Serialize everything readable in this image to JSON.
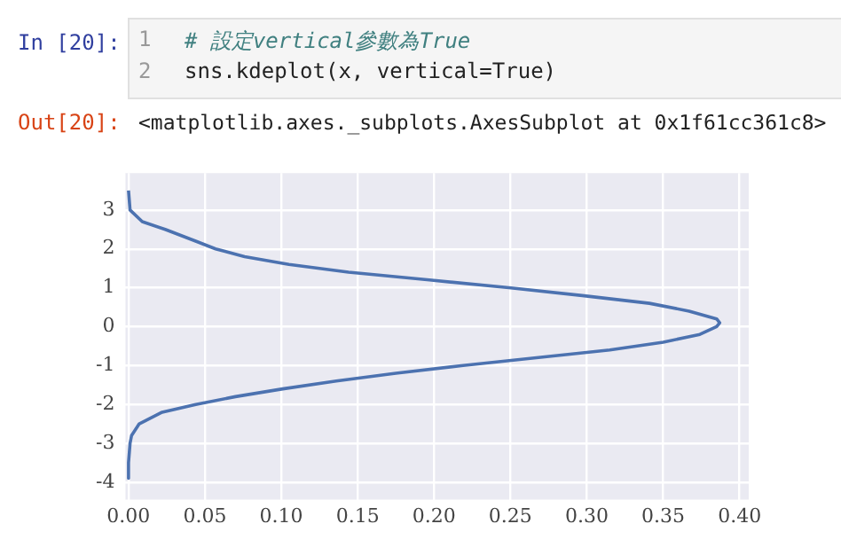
{
  "chart_data": {
    "type": "line",
    "annotations": [
      "In [20]:",
      "1",
      "# 設定vertical參數為True",
      "2",
      "sns.kdeplot(x, vertical=True)",
      "Out[20]:",
      "<matplotlib.axes._subplots.AxesSubplot at 0x1f61cc361c8>"
    ],
    "series": [
      {
        "color": "#4c72b0",
        "x": [
          0.0,
          0.001,
          0.009,
          0.024,
          0.044,
          0.057,
          0.076,
          0.105,
          0.144,
          0.197,
          0.249,
          0.297,
          0.341,
          0.367,
          0.385,
          0.387,
          0.385,
          0.374,
          0.35,
          0.315,
          0.267,
          0.219,
          0.175,
          0.136,
          0.101,
          0.07,
          0.044,
          0.022,
          0.007,
          0.002,
          0.001,
          0.0,
          0.0
        ],
        "values": [
          3.5,
          3.0,
          2.7,
          2.5,
          2.2,
          2.0,
          1.8,
          1.6,
          1.4,
          1.2,
          1.0,
          0.8,
          0.6,
          0.4,
          0.2,
          0.1,
          0.0,
          -0.2,
          -0.4,
          -0.6,
          -0.8,
          -1.0,
          -1.2,
          -1.4,
          -1.6,
          -1.8,
          -2.0,
          -2.2,
          -2.5,
          -2.8,
          -3.0,
          -3.5,
          -3.9
        ]
      }
    ],
    "xlim": [
      -0.002,
      0.406
    ],
    "xticks": [
      {
        "value": 0,
        "label": "0.00"
      },
      {
        "value": 0.05,
        "label": "0.05"
      },
      {
        "value": 0.1,
        "label": "0.10"
      },
      {
        "value": 0.15,
        "label": "0.15"
      },
      {
        "value": 0.2,
        "label": "0.20"
      },
      {
        "value": 0.25,
        "label": "0.25"
      },
      {
        "value": 0.3,
        "label": "0.30"
      },
      {
        "value": 0.35,
        "label": "0.35"
      },
      {
        "value": 0.4,
        "label": "0.40"
      }
    ],
    "ylim": [
      -4.45,
      3.95
    ],
    "yticks": [
      -4,
      -3,
      -2,
      -1,
      0,
      1,
      2,
      3
    ],
    "grid": true,
    "legend": false,
    "marker": "none",
    "line_style": "solid"
  }
}
